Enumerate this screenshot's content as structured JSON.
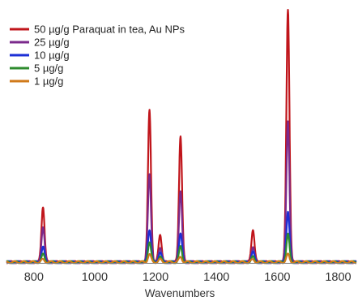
{
  "chart_data": {
    "type": "line",
    "title": "",
    "xlabel": "Wavenumbers",
    "ylabel": "",
    "xlim": [
      710,
      1860
    ],
    "ylim": [
      0,
      1
    ],
    "x_ticks": [
      800,
      1000,
      1200,
      1400,
      1600,
      1800
    ],
    "x_tick_labels": [
      "800",
      "1000",
      "1200",
      "1400",
      "1600",
      "1800"
    ],
    "y_ticks_shown": false,
    "grid": false,
    "legend_position": "top-left",
    "peak_positions": [
      830,
      1180,
      1215,
      1282,
      1520,
      1635
    ],
    "series": [
      {
        "name": "50 µg/g Paraquat in tea, Au NPs",
        "color": "#c0151b",
        "peak_heights": [
          0.22,
          0.6,
          0.11,
          0.5,
          0.13,
          1.0
        ]
      },
      {
        "name": "25 µg/g",
        "color": "#7b2a8c",
        "peak_heights": [
          0.14,
          0.35,
          0.06,
          0.28,
          0.06,
          0.56
        ]
      },
      {
        "name": "10 µg/g",
        "color": "#1c2fd6",
        "peak_heights": [
          0.06,
          0.13,
          0.04,
          0.11,
          0.04,
          0.2
        ]
      },
      {
        "name": "5 µg/g",
        "color": "#2e8b2e",
        "peak_heights": [
          0.03,
          0.08,
          0.02,
          0.06,
          0.02,
          0.11
        ]
      },
      {
        "name": "1 µg/g",
        "color": "#d07a1a",
        "peak_heights": [
          0.01,
          0.03,
          0.01,
          0.02,
          0.01,
          0.03
        ]
      }
    ]
  }
}
